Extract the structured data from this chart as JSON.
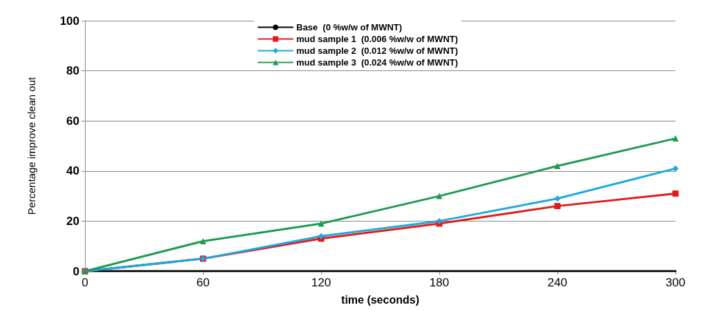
{
  "chart_data": {
    "type": "line",
    "xlabel": "time (seconds)",
    "ylabel": "Percentage improve clean out",
    "x": [
      0,
      60,
      120,
      180,
      240,
      300
    ],
    "xlim": [
      0,
      300
    ],
    "xticks": [
      0,
      60,
      120,
      180,
      240,
      300
    ],
    "ylim": [
      0,
      100
    ],
    "yticks": [
      0,
      20,
      40,
      60,
      80,
      100
    ],
    "grid": "y",
    "legend": "top",
    "line_style": "solid",
    "series": [
      {
        "name": "Base  (0 %w/w of MWNT)",
        "color": "#000000",
        "marker": "none",
        "values": [
          0,
          0,
          0,
          0,
          0,
          0
        ]
      },
      {
        "name": "mud sample 1  (0.006 %w/w of MWNT)",
        "color": "#e3191c",
        "marker": "square",
        "values": [
          0,
          5,
          13,
          19,
          26,
          31
        ]
      },
      {
        "name": "mud sample 2  (0.012 %w/w of MWNT)",
        "color": "#1ba9e1",
        "marker": "diamond",
        "values": [
          0,
          5,
          14,
          20,
          29,
          41
        ]
      },
      {
        "name": "mud sample 3  (0.024 %w/w of MWNT)",
        "color": "#1e9b4f",
        "marker": "triangle",
        "values": [
          0,
          12,
          19,
          30,
          42,
          53
        ]
      }
    ]
  }
}
